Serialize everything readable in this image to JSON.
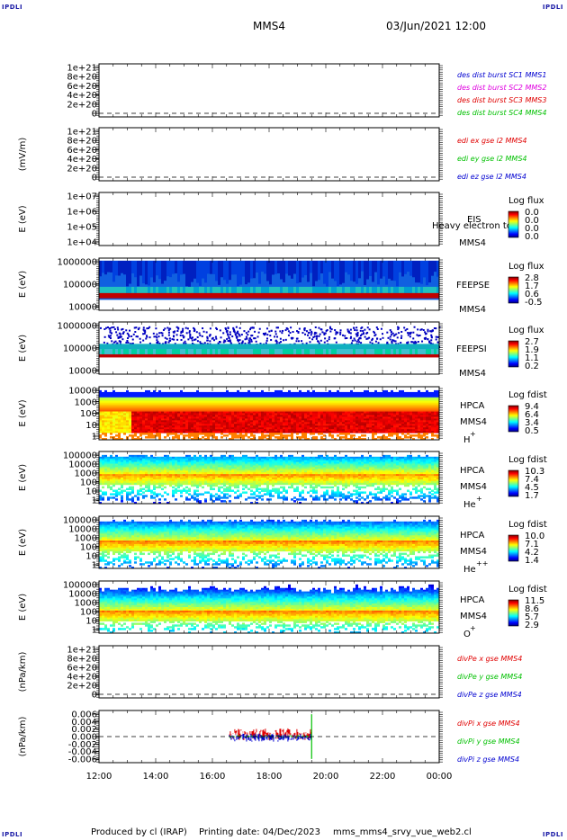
{
  "header": {
    "corner_label": "IPDLI",
    "spacecraft": "MMS4",
    "datetime": "03/Jun/2021 12:00"
  },
  "footer": {
    "produced_by": "Produced by cl (IRAP)",
    "printing_date": "Printing date: 04/Dec/2023",
    "filename": "mms_mms4_srvy_vue_web2.cl"
  },
  "time_axis": {
    "ticks": [
      "12:00",
      "14:00",
      "16:00",
      "18:00",
      "20:00",
      "22:00",
      "00:00"
    ],
    "range_hours": [
      12,
      24
    ]
  },
  "colors": {
    "red": "#e00000",
    "green": "#00c000",
    "blue": "#0000d0",
    "magenta": "#e000e0",
    "text": "#000000"
  },
  "chart_data": [
    {
      "type": "line",
      "ylabel": "",
      "yticks": [
        "1e+21",
        "8e+20",
        "6e+20",
        "4e+20",
        "2e+20",
        "0"
      ],
      "ylim": [
        0,
        1e+21
      ],
      "legend": [
        {
          "text": "des dist burst SC1 MMS1",
          "color": "#0000d0"
        },
        {
          "text": "des dist burst SC2 MMS2",
          "color": "#e000e0"
        },
        {
          "text": "des dist burst SC3 MMS3",
          "color": "#e00000"
        },
        {
          "text": "des dist burst SC4 MMS4",
          "color": "#00c000"
        }
      ],
      "dashed_zero": true,
      "series": []
    },
    {
      "type": "line",
      "ylabel": "(mV/m)",
      "yticks": [
        "1e+21",
        "8e+20",
        "6e+20",
        "4e+20",
        "2e+20",
        "0"
      ],
      "ylim": [
        0,
        1e+21
      ],
      "legend": [
        {
          "text": "edi ex gse l2 MMS4",
          "color": "#e00000"
        },
        {
          "text": "edi ey gse l2 MMS4",
          "color": "#00c000"
        },
        {
          "text": "edi ez gse l2 MMS4",
          "color": "#0000d0"
        }
      ],
      "dashed_zero": true,
      "series": []
    },
    {
      "type": "heatmap",
      "ylabel": "E (eV)",
      "yticks": [
        "1e+07",
        "1e+06",
        "1e+05",
        "1e+04"
      ],
      "ylim": [
        10000,
        10000000
      ],
      "instrument": [
        "EIS",
        "MMS4"
      ],
      "overlay_text": "Heavy electron to",
      "colorbar": {
        "title": "Log flux",
        "ticks": [
          "0.0",
          "0.0",
          "0.0",
          "0.0"
        ]
      },
      "data_start_hour": null
    },
    {
      "type": "heatmap",
      "ylabel": "E (eV)",
      "yticks": [
        "1000000",
        "100000",
        "10000"
      ],
      "ylim": [
        10000,
        1000000
      ],
      "instrument": [
        "FEEPSE",
        "MMS4"
      ],
      "colorbar": {
        "title": "Log flux",
        "ticks": [
          "2.8",
          "1.7",
          "0.6",
          "-0.5"
        ]
      },
      "data_start_hour": 12
    },
    {
      "type": "heatmap",
      "ylabel": "E (eV)",
      "yticks": [
        "1000000",
        "100000",
        "10000"
      ],
      "ylim": [
        10000,
        1000000
      ],
      "instrument": [
        "FEEPSI",
        "MMS4"
      ],
      "colorbar": {
        "title": "Log flux",
        "ticks": [
          "2.7",
          "1.9",
          "1.1",
          "0.2"
        ]
      },
      "data_start_hour": 12
    },
    {
      "type": "heatmap",
      "ylabel": "E (eV)",
      "yticks": [
        "10000",
        "1000",
        "100",
        "10",
        "1"
      ],
      "ylim": [
        1,
        30000
      ],
      "instrument": [
        "HPCA",
        "MMS4",
        "H",
        "+"
      ],
      "colorbar": {
        "title": "Log fdist",
        "ticks": [
          "9.4",
          "6.4",
          "3.4",
          "0.5"
        ]
      },
      "data_start_hour": 12
    },
    {
      "type": "heatmap",
      "ylabel": "E (eV)",
      "yticks": [
        "100000",
        "10000",
        "1000",
        "100",
        "10",
        "1"
      ],
      "ylim": [
        1,
        100000
      ],
      "instrument": [
        "HPCA",
        "MMS4",
        "He",
        "+"
      ],
      "colorbar": {
        "title": "Log fdist",
        "ticks": [
          "10.3",
          "7.4",
          "4.5",
          "1.7"
        ]
      },
      "data_start_hour": 12
    },
    {
      "type": "heatmap",
      "ylabel": "E (eV)",
      "yticks": [
        "100000",
        "10000",
        "1000",
        "100",
        "10",
        "1"
      ],
      "ylim": [
        1,
        100000
      ],
      "instrument": [
        "HPCA",
        "MMS4",
        "He",
        "++"
      ],
      "colorbar": {
        "title": "Log fdist",
        "ticks": [
          "10.0",
          "7.1",
          "4.2",
          "1.4"
        ]
      },
      "data_start_hour": 12
    },
    {
      "type": "heatmap",
      "ylabel": "E (eV)",
      "yticks": [
        "100000",
        "10000",
        "1000",
        "100",
        "10",
        "1"
      ],
      "ylim": [
        1,
        100000
      ],
      "instrument": [
        "HPCA",
        "MMS4",
        "O",
        "+"
      ],
      "colorbar": {
        "title": "Log fdist",
        "ticks": [
          "11.5",
          "8.6",
          "5.7",
          "2.9"
        ]
      },
      "data_start_hour": 12
    },
    {
      "type": "line",
      "ylabel": "(nPa/km)",
      "yticks": [
        "1e+21",
        "8e+20",
        "6e+20",
        "4e+20",
        "2e+20",
        "0"
      ],
      "ylim": [
        0,
        1e+21
      ],
      "legend": [
        {
          "text": "divPe x gse MMS4",
          "color": "#e00000"
        },
        {
          "text": "divPe y gse MMS4",
          "color": "#00c000"
        },
        {
          "text": "divPe z gse MMS4",
          "color": "#0000d0"
        }
      ],
      "dashed_zero": true,
      "series": []
    },
    {
      "type": "line",
      "ylabel": "(nPa/km)",
      "yticks": [
        "0.006",
        "0.004",
        "0.002",
        "0.000",
        "-0.002",
        "-0.004",
        "-0.006"
      ],
      "ylim": [
        -0.007,
        0.007
      ],
      "legend": [
        {
          "text": "divPi x gse MMS4",
          "color": "#e00000"
        },
        {
          "text": "divPi y gse MMS4",
          "color": "#00c000"
        },
        {
          "text": "divPi z gse MMS4",
          "color": "#0000d0"
        }
      ],
      "dashed_zero": true,
      "series": [
        {
          "name": "divPi x gse MMS4",
          "color": "#e00000",
          "x_range": [
            16.6,
            19.5
          ],
          "amplitude": 0.0016,
          "offset": 0.0006
        },
        {
          "name": "divPi y gse MMS4",
          "color": "#00c000",
          "x_range": [
            16.6,
            19.5
          ],
          "amplitude": 0.0005,
          "offset": 0.0
        },
        {
          "name": "divPi z gse MMS4",
          "color": "#0000d0",
          "x_range": [
            16.6,
            19.5
          ],
          "amplitude": 0.0011,
          "offset": -0.0003
        }
      ]
    }
  ]
}
